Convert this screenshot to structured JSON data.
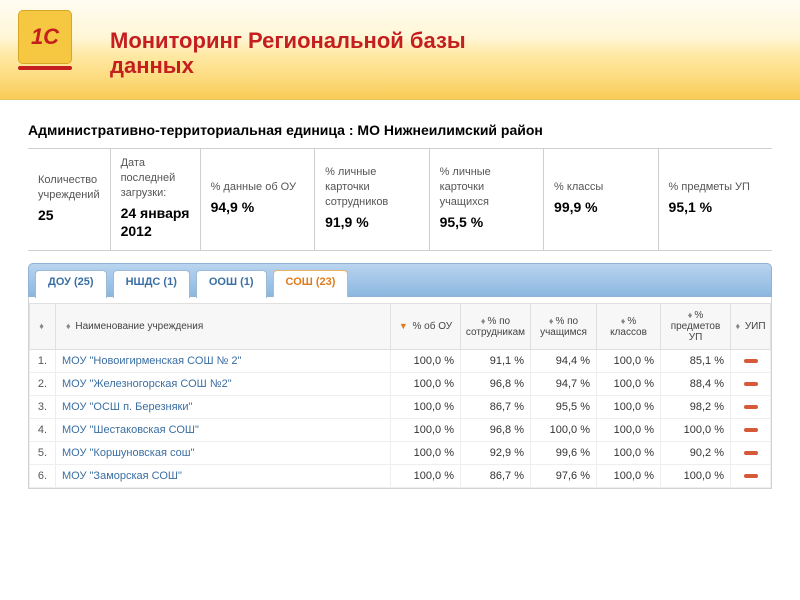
{
  "header": {
    "logo_text": "1С",
    "title": "Мониторинг Региональной базы данных"
  },
  "section_title_prefix": "Административно-территориальная единица :",
  "section_title_unit": "МО Нижнеилимский район",
  "metrics": [
    {
      "label": "Количество учреждений",
      "value": "25"
    },
    {
      "label": "Дата последней загрузки:",
      "value": "24 января 2012"
    },
    {
      "label": "% данные об ОУ",
      "value": "94,9 %"
    },
    {
      "label": "% личные карточки сотрудников",
      "value": "91,9 %"
    },
    {
      "label": "% личные карточки учащихся",
      "value": "95,5 %"
    },
    {
      "label": "% классы",
      "value": "99,9 %"
    },
    {
      "label": "% предметы УП",
      "value": "95,1 %"
    }
  ],
  "tabs": [
    {
      "label": "ДОУ (25)",
      "active": false
    },
    {
      "label": "НШДС (1)",
      "active": false
    },
    {
      "label": "ООШ (1)",
      "active": false
    },
    {
      "label": "СОШ (23)",
      "active": true
    }
  ],
  "columns": {
    "idx": "",
    "name": "Наименование учреждения",
    "pct_ou": "% об ОУ",
    "pct_staff": "% по сотрудникам",
    "pct_students": "% по учащимся",
    "pct_classes": "% классов",
    "pct_subjects": "% предметов УП",
    "uip": "УИП"
  },
  "rows": [
    {
      "idx": "1.",
      "name": "МОУ \"Новоигирменская СОШ № 2\"",
      "ou": "100,0 %",
      "staff": "91,1 %",
      "students": "94,4 %",
      "classes": "100,0 %",
      "subjects": "85,1 %"
    },
    {
      "idx": "2.",
      "name": "МОУ \"Железногорская СОШ №2\"",
      "ou": "100,0 %",
      "staff": "96,8 %",
      "students": "94,7 %",
      "classes": "100,0 %",
      "subjects": "88,4 %"
    },
    {
      "idx": "3.",
      "name": "МОУ \"ОСШ п. Березняки\"",
      "ou": "100,0 %",
      "staff": "86,7 %",
      "students": "95,5 %",
      "classes": "100,0 %",
      "subjects": "98,2 %"
    },
    {
      "idx": "4.",
      "name": "МОУ \"Шестаковская СОШ\"",
      "ou": "100,0 %",
      "staff": "96,8 %",
      "students": "100,0 %",
      "classes": "100,0 %",
      "subjects": "100,0 %"
    },
    {
      "idx": "5.",
      "name": "МОУ \"Коршуновская сош\"",
      "ou": "100,0 %",
      "staff": "92,9 %",
      "students": "99,6 %",
      "classes": "100,0 %",
      "subjects": "90,2 %"
    },
    {
      "idx": "6.",
      "name": "МОУ \"Заморская СОШ\"",
      "ou": "100,0 %",
      "staff": "86,7 %",
      "students": "97,6 %",
      "classes": "100,0 %",
      "subjects": "100,0 %"
    }
  ],
  "colors": {
    "accent_red": "#c41e1e",
    "accent_orange": "#e07b1c",
    "tab_link": "#3b6fa3",
    "banner_from": "#fffdf3",
    "banner_to": "#f8cb55",
    "border": "#cfcfcf"
  }
}
